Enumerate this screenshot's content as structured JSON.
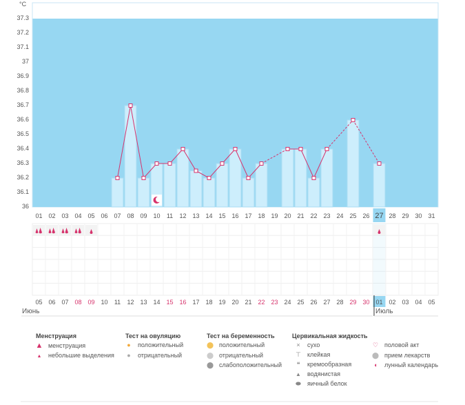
{
  "chart_data": {
    "type": "line",
    "unit": "°C",
    "y_ticks": [
      "37.3",
      "37.2",
      "37.1",
      "37",
      "36.9",
      "36.8",
      "36.7",
      "36.6",
      "36.5",
      "36.4",
      "36.3",
      "36.2",
      "36.1",
      "36"
    ],
    "ylim": [
      36.0,
      37.3
    ],
    "top_days": [
      "01",
      "02",
      "03",
      "04",
      "05",
      "06",
      "07",
      "08",
      "09",
      "10",
      "11",
      "12",
      "13",
      "14",
      "15",
      "16",
      "17",
      "18",
      "19",
      "20",
      "21",
      "22",
      "23",
      "24",
      "25",
      "26",
      "27",
      "28",
      "29",
      "30",
      "31"
    ],
    "bottom_days": [
      "05",
      "06",
      "07",
      "08",
      "09",
      "10",
      "11",
      "12",
      "13",
      "14",
      "15",
      "16",
      "17",
      "18",
      "19",
      "20",
      "21",
      "22",
      "23",
      "24",
      "25",
      "26",
      "27",
      "28",
      "29",
      "30",
      "01",
      "02",
      "03",
      "04",
      "05"
    ],
    "bottom_red_idx": [
      3,
      4,
      10,
      11,
      17,
      18,
      24,
      25
    ],
    "current_idx": 26,
    "temps": [
      null,
      null,
      null,
      null,
      null,
      null,
      36.2,
      36.7,
      36.2,
      36.3,
      36.3,
      36.4,
      36.25,
      36.2,
      36.3,
      36.4,
      36.2,
      36.3,
      null,
      36.4,
      36.4,
      36.2,
      36.4,
      null,
      36.6,
      null,
      36.3,
      null,
      null,
      null,
      null
    ],
    "menstruation_heavy_idx": [
      0,
      1,
      2,
      3
    ],
    "menstruation_light_idx": [
      4,
      26
    ],
    "moon_idx": 9,
    "grid": true
  },
  "months": {
    "left": "Июнь",
    "right": "Июль"
  },
  "legend": {
    "menstruation": {
      "title": "Менструация",
      "items": [
        "менструация",
        "небольшие выделения"
      ]
    },
    "ovulation": {
      "title": "Тест на овуляцию",
      "items": [
        "положительный",
        "отрицательный"
      ]
    },
    "pregnancy": {
      "title": "Тест на беременность",
      "items": [
        "положительный",
        "отрицательный",
        "слабоположительный"
      ]
    },
    "cervical": {
      "title": "Цервикальная жидкость",
      "items": [
        "сухо",
        "клейкая",
        "кремообразная",
        "водянистая",
        "яичный белок"
      ]
    },
    "other": {
      "items": [
        "половой акт",
        "прием лекарств",
        "лунный календарь"
      ]
    }
  },
  "colors": {
    "sky": "#97d7f2",
    "bar": "#cdeefc",
    "bar_stroke": "#a9dcf3",
    "line": "#d6336c",
    "red_day": "#d6336c",
    "highlight": "#97d7f2"
  }
}
